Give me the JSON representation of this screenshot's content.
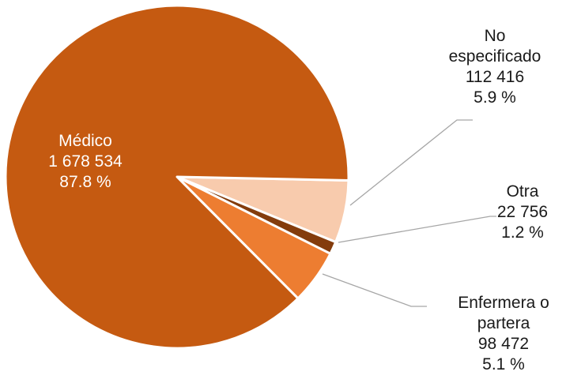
{
  "chart_data": {
    "type": "pie",
    "title": "",
    "legend": "none",
    "slices": [
      {
        "name": "No especificado",
        "name_lines": [
          "No",
          "especificado"
        ],
        "value": 112416,
        "value_text": "112 416",
        "percent": 5.9,
        "percent_text": "5.9 %",
        "color": "#F8CBAD"
      },
      {
        "name": "Otra",
        "name_lines": [
          "Otra"
        ],
        "value": 22756,
        "value_text": "22 756",
        "percent": 1.2,
        "percent_text": "1.2 %",
        "color": "#843C0C"
      },
      {
        "name": "Enfermera o partera",
        "name_lines": [
          "Enfermera o",
          "partera"
        ],
        "value": 98472,
        "value_text": "98 472",
        "percent": 5.1,
        "percent_text": "5.1 %",
        "color": "#ED7D31"
      },
      {
        "name": "Médico",
        "name_lines": [
          "Médico"
        ],
        "value": 1678534,
        "value_text": "1 678 534",
        "percent": 87.8,
        "percent_text": "87.8 %",
        "color": "#C55A11"
      }
    ]
  }
}
